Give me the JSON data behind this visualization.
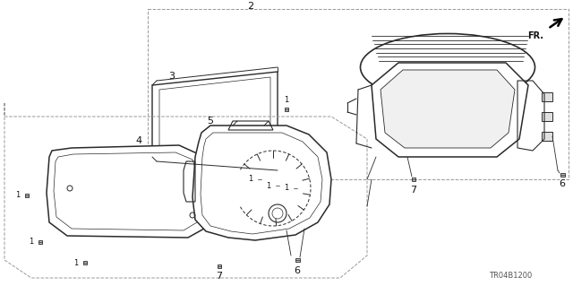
{
  "background_color": "#ffffff",
  "part_number_text": "TR04B1200",
  "line_color": "#2a2a2a",
  "text_color": "#111111",
  "dashed_color": "#999999",
  "screw_color": "#555555"
}
